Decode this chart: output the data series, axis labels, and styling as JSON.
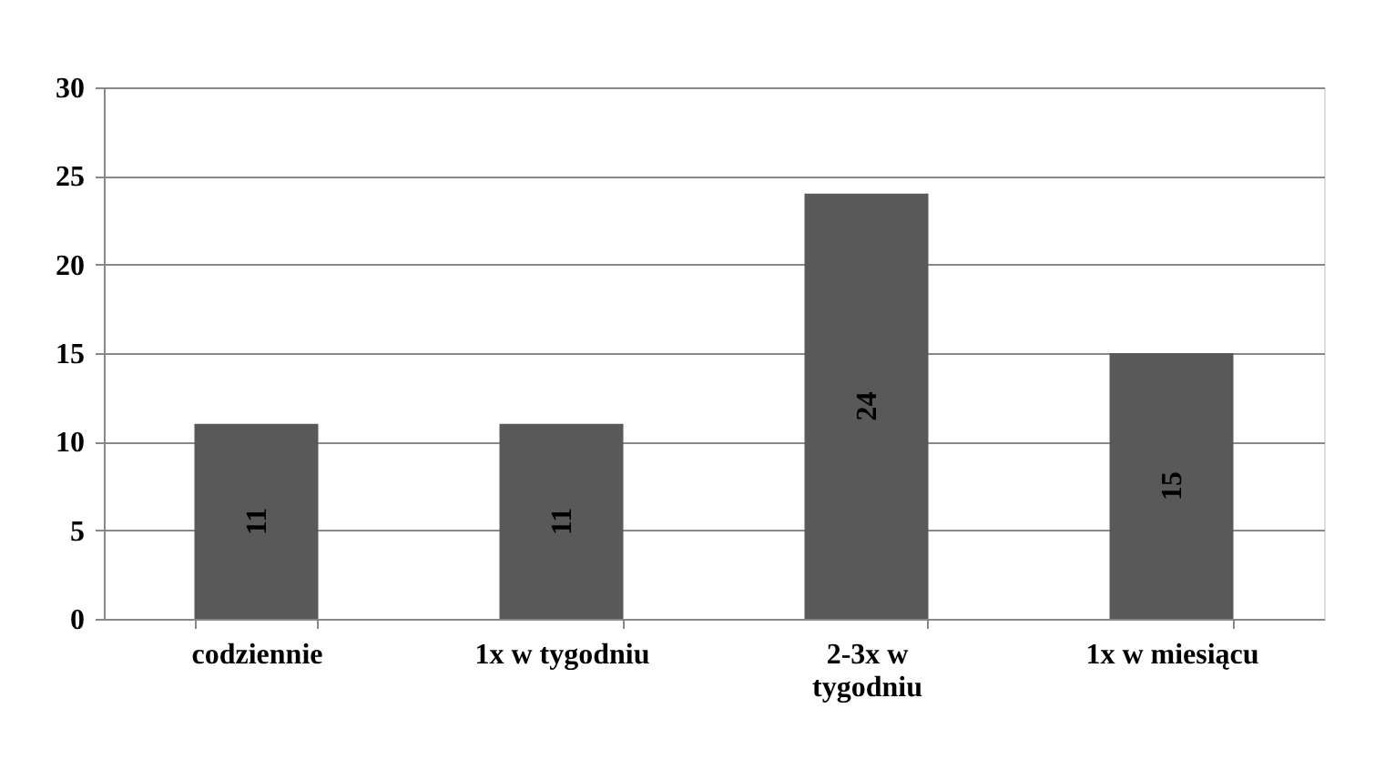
{
  "chart_data": {
    "type": "bar",
    "categories": [
      "codziennie",
      "1x w tygodniu",
      "2-3x w tygodniu",
      "1x w miesiącu"
    ],
    "values": [
      11,
      11,
      24,
      15
    ],
    "color": "#595959",
    "ylim": [
      0,
      30
    ],
    "yticks": [
      0,
      5,
      10,
      15,
      20,
      25,
      30
    ],
    "grid": "y",
    "data_labels": true
  }
}
